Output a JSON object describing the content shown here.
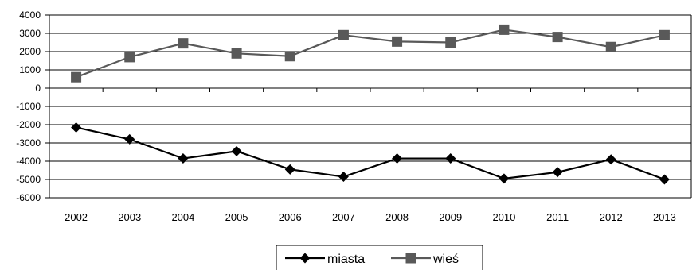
{
  "chart_data": {
    "type": "line",
    "categories": [
      "2002",
      "2003",
      "2004",
      "2005",
      "2006",
      "2007",
      "2008",
      "2009",
      "2010",
      "2011",
      "2012",
      "2013"
    ],
    "series": [
      {
        "name": "miasta",
        "values": [
          -2150,
          -2800,
          -3850,
          -3450,
          -4450,
          -4850,
          -3850,
          -3850,
          -4950,
          -4600,
          -3900,
          -5000
        ],
        "color": "#000000",
        "marker": "diamond"
      },
      {
        "name": "wieś",
        "values": [
          600,
          1700,
          2450,
          1900,
          1750,
          2900,
          2550,
          2500,
          3200,
          2800,
          2250,
          2900
        ],
        "color": "#595959",
        "marker": "square"
      }
    ],
    "ylim": [
      -6000,
      4000
    ],
    "yticks": [
      "4000",
      "3000",
      "2000",
      "1000",
      "0",
      "-1000",
      "-2000",
      "-3000",
      "-4000",
      "-5000",
      "-6000"
    ],
    "grid": true,
    "legend_position": "bottom-center",
    "title": "",
    "xlabel": "",
    "ylabel": ""
  }
}
